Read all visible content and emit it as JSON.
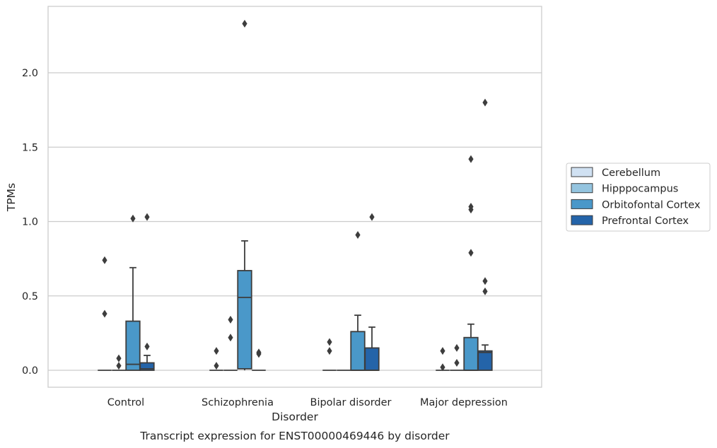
{
  "chart_data": {
    "type": "box",
    "title": "",
    "caption": "Transcript expression for ENST00000469446 by disorder",
    "xlabel": "Disorder",
    "ylabel": "TPMs",
    "ylim": [
      -0.11,
      2.45
    ],
    "yticks": [
      0.0,
      0.5,
      1.0,
      1.5,
      2.0
    ],
    "ytick_labels": [
      "0.0",
      "0.5",
      "1.0",
      "1.5",
      "2.0"
    ],
    "grid": "horizontal",
    "legend_position": "right",
    "categories": [
      "Control",
      "Schizophrenia",
      "Bipolar disorder",
      "Major depression"
    ],
    "series": [
      {
        "name": "Cerebellum",
        "color": "#d0e1f2",
        "boxes": [
          {
            "q1": 0,
            "median": 0,
            "q3": 0,
            "whisker_low": 0,
            "whisker_high": 0,
            "outliers": [
              0.38,
              0.74
            ]
          },
          {
            "q1": 0,
            "median": 0,
            "q3": 0,
            "whisker_low": 0,
            "whisker_high": 0,
            "outliers": [
              0.03,
              0.13
            ]
          },
          {
            "q1": 0,
            "median": 0,
            "q3": 0,
            "whisker_low": 0,
            "whisker_high": 0,
            "outliers": [
              0.13,
              0.19
            ]
          },
          {
            "q1": 0,
            "median": 0,
            "q3": 0,
            "whisker_low": 0,
            "whisker_high": 0,
            "outliers": [
              0.02,
              0.13
            ]
          }
        ]
      },
      {
        "name": "Hipppocampus",
        "color": "#94c4df",
        "boxes": [
          {
            "q1": 0,
            "median": 0,
            "q3": 0,
            "whisker_low": 0,
            "whisker_high": 0,
            "outliers": [
              0.03,
              0.08
            ]
          },
          {
            "q1": 0,
            "median": 0,
            "q3": 0,
            "whisker_low": 0,
            "whisker_high": 0,
            "outliers": [
              0.22,
              0.34
            ]
          },
          {
            "q1": 0,
            "median": 0,
            "q3": 0,
            "whisker_low": 0,
            "whisker_high": 0,
            "outliers": []
          },
          {
            "q1": 0,
            "median": 0,
            "q3": 0,
            "whisker_low": 0,
            "whisker_high": 0,
            "outliers": [
              0.05,
              0.15
            ]
          }
        ]
      },
      {
        "name": "Orbitofontal Cortex",
        "color": "#4a98c9",
        "boxes": [
          {
            "q1": 0,
            "median": 0.04,
            "q3": 0.33,
            "whisker_low": 0,
            "whisker_high": 0.69,
            "outliers": [
              1.02
            ]
          },
          {
            "q1": 0.01,
            "median": 0.49,
            "q3": 0.67,
            "whisker_low": 0,
            "whisker_high": 0.87,
            "outliers": [
              2.33
            ]
          },
          {
            "q1": 0,
            "median": 0,
            "q3": 0.26,
            "whisker_low": 0,
            "whisker_high": 0.37,
            "outliers": [
              0.91
            ]
          },
          {
            "q1": 0,
            "median": 0,
            "q3": 0.22,
            "whisker_low": 0,
            "whisker_high": 0.31,
            "outliers": [
              0.79,
              1.08,
              1.1,
              1.42
            ]
          }
        ]
      },
      {
        "name": "Prefrontal Cortex",
        "color": "#2464a9",
        "boxes": [
          {
            "q1": 0,
            "median": 0.01,
            "q3": 0.05,
            "whisker_low": 0,
            "whisker_high": 0.1,
            "outliers": [
              0.16,
              1.03
            ]
          },
          {
            "q1": 0,
            "median": 0,
            "q3": 0,
            "whisker_low": 0,
            "whisker_high": 0,
            "outliers": [
              0.11,
              0.12
            ]
          },
          {
            "q1": 0,
            "median": 0,
            "q3": 0.15,
            "whisker_low": 0,
            "whisker_high": 0.29,
            "outliers": [
              1.03
            ]
          },
          {
            "q1": 0,
            "median": 0.12,
            "q3": 0.13,
            "whisker_low": 0,
            "whisker_high": 0.17,
            "outliers": [
              0.53,
              0.6,
              1.8
            ]
          }
        ]
      }
    ]
  }
}
